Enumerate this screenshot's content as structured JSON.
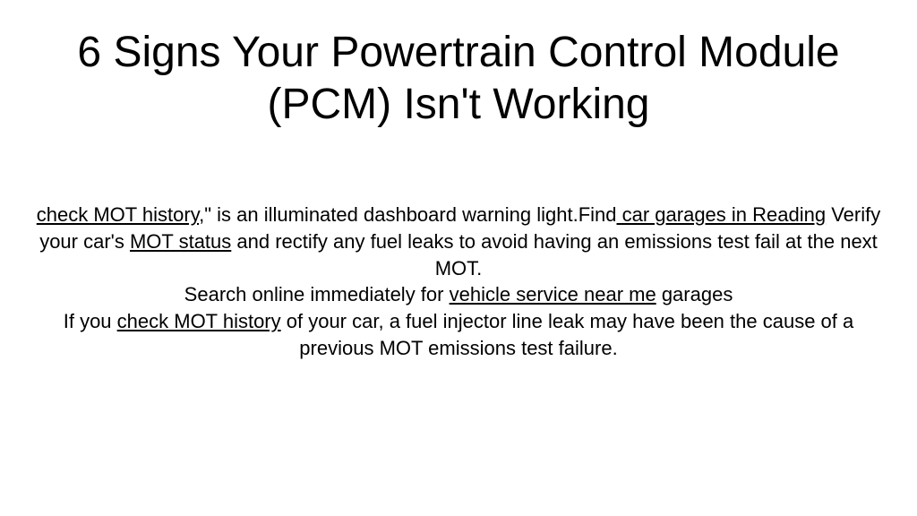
{
  "title": "6 Signs Your Powertrain Control Module (PCM) Isn't Working",
  "body": {
    "link1": "check MOT history",
    "t1": ",\" is an illuminated dashboard warning light.Find",
    "link2": " car garages in Reading",
    "t2": " Verify your car's ",
    "link3": "MOT status",
    "t3": " and rectify any fuel leaks to avoid having an emissions test fail at the next MOT.",
    "t4": "Search online immediately for ",
    "link4": "vehicle service near me",
    "t5": " garages",
    "t6": "If you ",
    "link5": "check MOT history",
    "t7": " of your car, a fuel injector line leak may have been the cause of a previous MOT emissions test failure."
  },
  "style": {
    "background_color": "#ffffff",
    "text_color": "#000000",
    "title_fontsize": 48,
    "body_fontsize": 22,
    "font_family": "Arial"
  }
}
